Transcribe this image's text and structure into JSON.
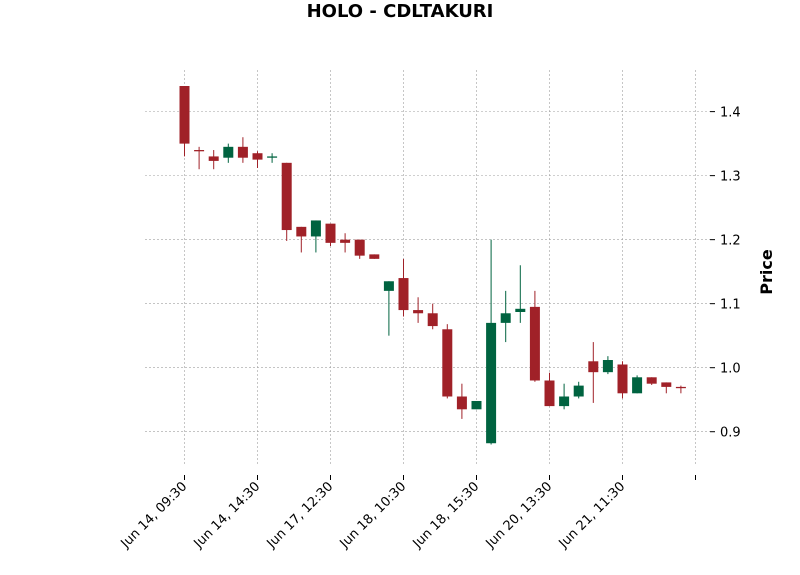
{
  "chart_data": {
    "type": "candlestick",
    "title": "HOLO - CDLTAKURI",
    "ylabel": "Price",
    "ylim": [
      0.848,
      1.465
    ],
    "yticks": [
      0.9,
      1.0,
      1.1,
      1.2,
      1.3,
      1.4
    ],
    "ytick_labels": [
      "0.9",
      "1.0",
      "1.1",
      "1.2",
      "1.3",
      "1.4"
    ],
    "xtick_labels": [
      "Jun 14, 09:30",
      "Jun 14, 14:30",
      "Jun 17, 12:30",
      "Jun 18, 10:30",
      "Jun 18, 15:30",
      "Jun 20, 13:30",
      "Jun 21, 11:30"
    ],
    "xtick_indices": [
      0,
      5,
      10,
      15,
      20,
      25,
      30
    ],
    "grid": true,
    "colors": {
      "up": "#006340",
      "down": "#a02128"
    },
    "candles": [
      {
        "o": 1.44,
        "h": 1.44,
        "l": 1.33,
        "c": 1.35
      },
      {
        "o": 1.34,
        "h": 1.345,
        "l": 1.31,
        "c": 1.338
      },
      {
        "o": 1.33,
        "h": 1.34,
        "l": 1.31,
        "c": 1.323
      },
      {
        "o": 1.328,
        "h": 1.35,
        "l": 1.32,
        "c": 1.345
      },
      {
        "o": 1.345,
        "h": 1.36,
        "l": 1.32,
        "c": 1.328
      },
      {
        "o": 1.335,
        "h": 1.338,
        "l": 1.312,
        "c": 1.325
      },
      {
        "o": 1.328,
        "h": 1.335,
        "l": 1.32,
        "c": 1.33
      },
      {
        "o": 1.32,
        "h": 1.32,
        "l": 1.198,
        "c": 1.215
      },
      {
        "o": 1.22,
        "h": 1.22,
        "l": 1.18,
        "c": 1.205
      },
      {
        "o": 1.205,
        "h": 1.23,
        "l": 1.18,
        "c": 1.23
      },
      {
        "o": 1.225,
        "h": 1.225,
        "l": 1.19,
        "c": 1.195
      },
      {
        "o": 1.2,
        "h": 1.21,
        "l": 1.18,
        "c": 1.195
      },
      {
        "o": 1.2,
        "h": 1.2,
        "l": 1.17,
        "c": 1.175
      },
      {
        "o": 1.177,
        "h": 1.177,
        "l": 1.17,
        "c": 1.17
      },
      {
        "o": 1.12,
        "h": 1.135,
        "l": 1.05,
        "c": 1.135
      },
      {
        "o": 1.14,
        "h": 1.17,
        "l": 1.08,
        "c": 1.09
      },
      {
        "o": 1.09,
        "h": 1.11,
        "l": 1.07,
        "c": 1.085
      },
      {
        "o": 1.085,
        "h": 1.1,
        "l": 1.06,
        "c": 1.065
      },
      {
        "o": 1.06,
        "h": 1.068,
        "l": 0.952,
        "c": 0.955
      },
      {
        "o": 0.955,
        "h": 0.975,
        "l": 0.92,
        "c": 0.935
      },
      {
        "o": 0.935,
        "h": 0.948,
        "l": 0.935,
        "c": 0.948
      },
      {
        "o": 0.882,
        "h": 1.2,
        "l": 0.88,
        "c": 1.07
      },
      {
        "o": 1.07,
        "h": 1.12,
        "l": 1.04,
        "c": 1.085
      },
      {
        "o": 1.087,
        "h": 1.16,
        "l": 1.07,
        "c": 1.092
      },
      {
        "o": 1.095,
        "h": 1.12,
        "l": 0.978,
        "c": 0.98
      },
      {
        "o": 0.98,
        "h": 0.992,
        "l": 0.94,
        "c": 0.94
      },
      {
        "o": 0.94,
        "h": 0.975,
        "l": 0.935,
        "c": 0.955
      },
      {
        "o": 0.955,
        "h": 0.978,
        "l": 0.952,
        "c": 0.972
      },
      {
        "o": 1.01,
        "h": 1.04,
        "l": 0.945,
        "c": 0.993
      },
      {
        "o": 0.993,
        "h": 1.018,
        "l": 0.99,
        "c": 1.012
      },
      {
        "o": 1.005,
        "h": 1.01,
        "l": 0.952,
        "c": 0.96
      },
      {
        "o": 0.96,
        "h": 0.988,
        "l": 0.96,
        "c": 0.985
      },
      {
        "o": 0.985,
        "h": 0.985,
        "l": 0.973,
        "c": 0.975
      },
      {
        "o": 0.977,
        "h": 0.977,
        "l": 0.96,
        "c": 0.97
      },
      {
        "o": 0.97,
        "h": 0.972,
        "l": 0.96,
        "c": 0.968
      }
    ]
  }
}
